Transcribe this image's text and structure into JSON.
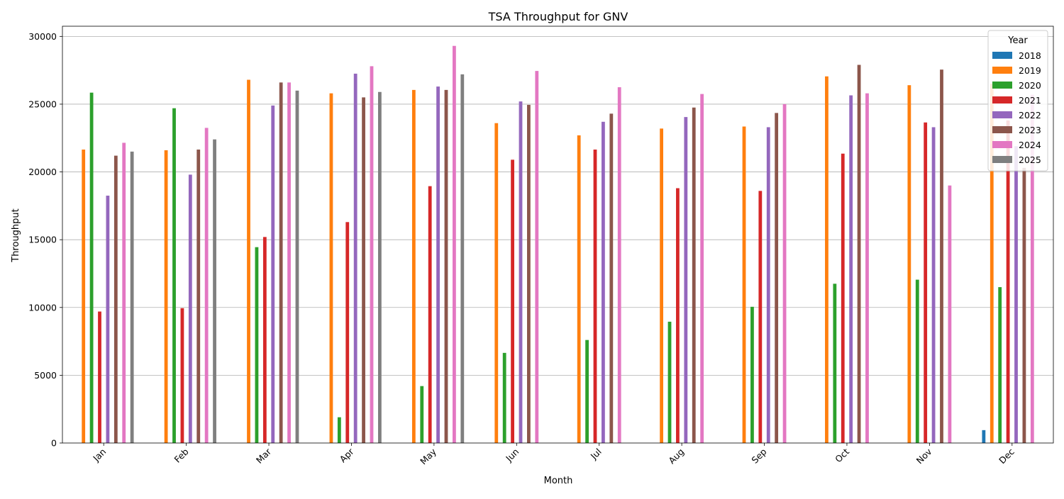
{
  "chart_data": {
    "type": "bar",
    "title": "TSA Throughput for GNV",
    "xlabel": "Month",
    "ylabel": "Throughput",
    "categories": [
      "Jan",
      "Feb",
      "Mar",
      "Apr",
      "May",
      "Jun",
      "Jul",
      "Aug",
      "Sep",
      "Oct",
      "Nov",
      "Dec"
    ],
    "ylim": [
      0,
      30750
    ],
    "yticks": [
      0,
      5000,
      10000,
      15000,
      20000,
      25000,
      30000
    ],
    "grid": "y",
    "legend": {
      "title": "Year",
      "placement": "top-right"
    },
    "series": [
      {
        "name": "2018",
        "color": "#1f77b4",
        "values": [
          null,
          null,
          null,
          null,
          null,
          null,
          null,
          null,
          null,
          null,
          null,
          950
        ]
      },
      {
        "name": "2019",
        "color": "#ff7f0e",
        "values": [
          21650,
          21600,
          26800,
          25800,
          26050,
          23600,
          22700,
          23200,
          23350,
          27050,
          26400,
          26500
        ]
      },
      {
        "name": "2020",
        "color": "#2ca02c",
        "values": [
          25850,
          24700,
          14450,
          1900,
          4200,
          6650,
          7600,
          8950,
          10050,
          11750,
          12050,
          11500
        ]
      },
      {
        "name": "2021",
        "color": "#d62728",
        "values": [
          9700,
          9950,
          15200,
          16300,
          18950,
          20900,
          21650,
          18800,
          18600,
          21350,
          23650,
          23800
        ]
      },
      {
        "name": "2022",
        "color": "#9467bd",
        "values": [
          18250,
          19800,
          24900,
          27250,
          26300,
          25200,
          23700,
          24050,
          23300,
          25650,
          23300,
          21900
        ]
      },
      {
        "name": "2023",
        "color": "#8c564b",
        "values": [
          21200,
          21650,
          26600,
          25500,
          26050,
          24950,
          24300,
          24750,
          24350,
          27900,
          27550,
          20300
        ]
      },
      {
        "name": "2024",
        "color": "#e377c2",
        "values": [
          22150,
          23250,
          26600,
          27800,
          29300,
          27450,
          26250,
          25750,
          25000,
          25800,
          19000,
          25700
        ]
      },
      {
        "name": "2025",
        "color": "#7f7f7f",
        "values": [
          21500,
          22400,
          26000,
          25900,
          27200,
          null,
          null,
          null,
          null,
          null,
          null,
          null
        ]
      }
    ]
  }
}
